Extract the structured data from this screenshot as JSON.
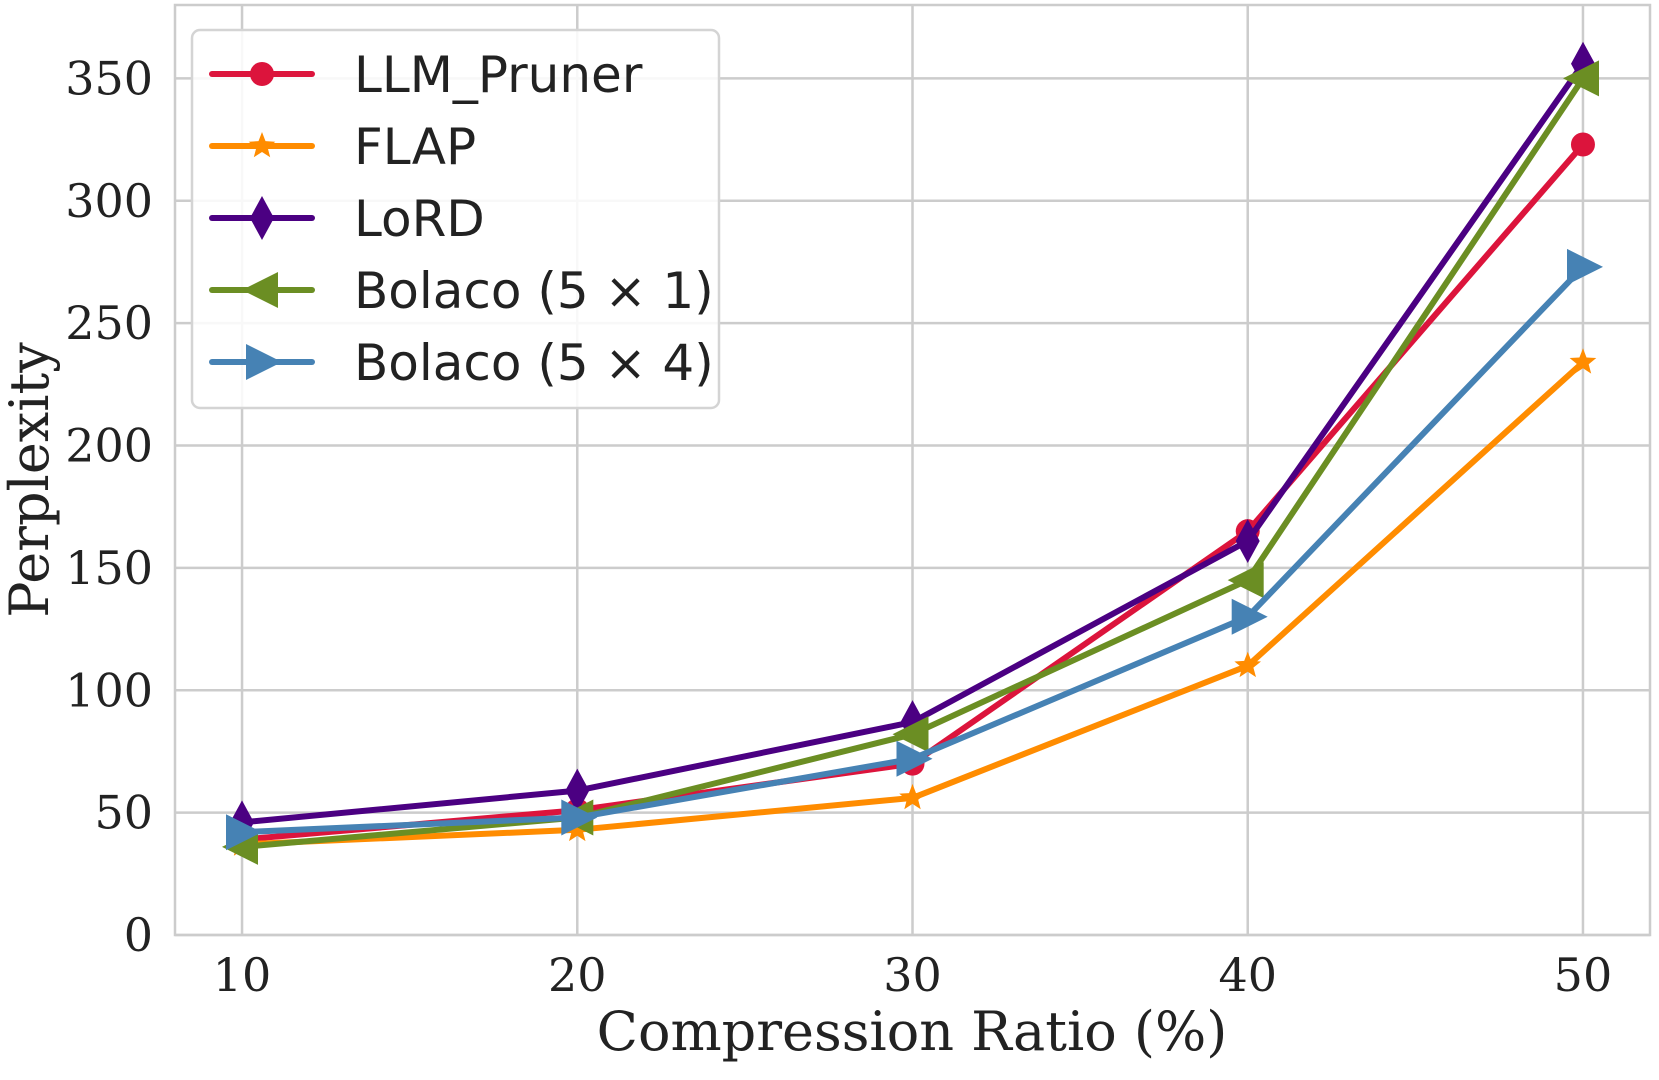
{
  "chart_data": {
    "type": "line",
    "title": "",
    "xlabel": "Compression Ratio (%)",
    "ylabel": "Perplexity",
    "x": [
      10,
      20,
      30,
      40,
      50
    ],
    "xticks": [
      "10",
      "20",
      "30",
      "40",
      "50"
    ],
    "yticks": [
      "0",
      "50",
      "100",
      "150",
      "200",
      "250",
      "300",
      "350"
    ],
    "xlim": [
      8,
      52
    ],
    "ylim": [
      0,
      380
    ],
    "grid": true,
    "legend_position": "top-left",
    "series": [
      {
        "name": "LLM_Pruner",
        "values": [
          39,
          51,
          70,
          165,
          323
        ],
        "color": "#dc143c",
        "marker": "circle"
      },
      {
        "name": "FLAP",
        "values": [
          37,
          43,
          56,
          110,
          234
        ],
        "color": "#ff8c00",
        "marker": "star"
      },
      {
        "name": "LoRD",
        "values": [
          46,
          59,
          87,
          161,
          356
        ],
        "color": "#4b0082",
        "marker": "diamond"
      },
      {
        "name": "Bolaco (5 × 1)",
        "values": [
          36,
          48,
          82,
          145,
          350
        ],
        "color": "#6b8e23",
        "marker": "triangle-left"
      },
      {
        "name": "Bolaco (5 × 4)",
        "values": [
          42,
          48,
          72,
          130,
          273
        ],
        "color": "#4682b4",
        "marker": "triangle-right"
      }
    ]
  }
}
